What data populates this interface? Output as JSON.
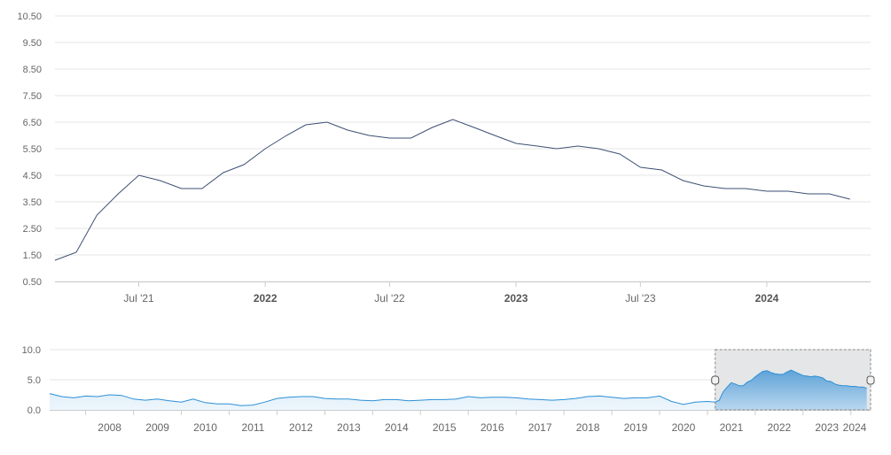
{
  "chart_data": [
    {
      "type": "line",
      "title": "",
      "xlabel": "",
      "ylabel": "",
      "grid": true,
      "legend": "none",
      "ylim": [
        0.5,
        10.5
      ],
      "yticks": [
        "0.50",
        "1.50",
        "2.50",
        "3.50",
        "4.50",
        "5.50",
        "6.50",
        "7.50",
        "8.50",
        "9.50",
        "10.50"
      ],
      "xlim": [
        "2021-03-01",
        "2024-05-31"
      ],
      "xticks": [
        {
          "date": "2021-07-01",
          "label": "Jul '21",
          "bold": false
        },
        {
          "date": "2022-01-01",
          "label": "2022",
          "bold": true
        },
        {
          "date": "2022-07-01",
          "label": "Jul '22",
          "bold": false
        },
        {
          "date": "2023-01-01",
          "label": "2023",
          "bold": true
        },
        {
          "date": "2023-07-01",
          "label": "Jul '23",
          "bold": false
        },
        {
          "date": "2024-01-01",
          "label": "2024",
          "bold": true
        }
      ],
      "colors": {
        "line": "#3d4f73",
        "grid": "#e6e6e6",
        "axis": "#cccccc"
      },
      "series": [
        {
          "x": [
            "2021-03-01",
            "2021-04-01",
            "2021-05-01",
            "2021-06-01",
            "2021-07-01",
            "2021-08-01",
            "2021-09-01",
            "2021-10-01",
            "2021-11-01",
            "2021-12-01",
            "2022-01-01",
            "2022-02-01",
            "2022-03-01",
            "2022-04-01",
            "2022-05-01",
            "2022-06-01",
            "2022-07-01",
            "2022-08-01",
            "2022-09-01",
            "2022-10-01",
            "2022-11-01",
            "2022-12-01",
            "2023-01-01",
            "2023-02-01",
            "2023-03-01",
            "2023-04-01",
            "2023-05-01",
            "2023-06-01",
            "2023-07-01",
            "2023-08-01",
            "2023-09-01",
            "2023-10-01",
            "2023-11-01",
            "2023-12-01",
            "2024-01-01",
            "2024-02-01",
            "2024-03-01",
            "2024-04-01",
            "2024-05-01"
          ],
          "y": [
            1.3,
            1.6,
            3.0,
            3.8,
            4.5,
            4.3,
            4.0,
            4.0,
            4.6,
            4.9,
            5.5,
            6.0,
            6.4,
            6.5,
            6.2,
            6.0,
            5.9,
            5.9,
            6.3,
            6.6,
            6.3,
            6.0,
            5.7,
            5.6,
            5.5,
            5.6,
            5.5,
            5.3,
            4.8,
            4.7,
            4.3,
            4.1,
            4.0,
            4.0,
            3.9,
            3.9,
            3.8,
            3.8,
            3.6
          ]
        }
      ]
    },
    {
      "type": "area",
      "title": "",
      "ylim": [
        0,
        10
      ],
      "yticks": [
        "0.0",
        "5.0",
        "10.0"
      ],
      "xlim": [
        "2007-04-01",
        "2024-05-31"
      ],
      "xticks": [
        "2008",
        "2009",
        "2010",
        "2011",
        "2012",
        "2013",
        "2014",
        "2015",
        "2016",
        "2017",
        "2018",
        "2019",
        "2020",
        "2021",
        "2022",
        "2023",
        "2024"
      ],
      "selected_range": [
        "2021-03-01",
        "2024-05-31"
      ],
      "colors": {
        "line": "#2b8fd6",
        "fill_top": "#cfe6f7",
        "fill_bottom": "#eef6fc",
        "selected_fill": "#6fa7d6",
        "mask": "#e4e6e8"
      },
      "series": [
        {
          "x": [
            "2007-04-01",
            "2007-07-01",
            "2007-10-01",
            "2008-01-01",
            "2008-04-01",
            "2008-07-01",
            "2008-10-01",
            "2009-01-01",
            "2009-04-01",
            "2009-07-01",
            "2009-10-01",
            "2010-01-01",
            "2010-04-01",
            "2010-07-01",
            "2010-10-01",
            "2011-01-01",
            "2011-04-01",
            "2011-07-01",
            "2011-10-01",
            "2012-01-01",
            "2012-04-01",
            "2012-07-01",
            "2012-10-01",
            "2013-01-01",
            "2013-04-01",
            "2013-07-01",
            "2013-10-01",
            "2014-01-01",
            "2014-04-01",
            "2014-07-01",
            "2014-10-01",
            "2015-01-01",
            "2015-04-01",
            "2015-07-01",
            "2015-10-01",
            "2016-01-01",
            "2016-04-01",
            "2016-07-01",
            "2016-10-01",
            "2017-01-01",
            "2017-04-01",
            "2017-07-01",
            "2017-10-01",
            "2018-01-01",
            "2018-04-01",
            "2018-07-01",
            "2018-10-01",
            "2019-01-01",
            "2019-04-01",
            "2019-07-01",
            "2019-10-01",
            "2020-01-01",
            "2020-04-01",
            "2020-07-01",
            "2020-10-01",
            "2021-01-01",
            "2021-03-01",
            "2021-04-01",
            "2021-05-01",
            "2021-06-01",
            "2021-07-01",
            "2021-08-01",
            "2021-09-01",
            "2021-10-01",
            "2021-11-01",
            "2021-12-01",
            "2022-01-01",
            "2022-02-01",
            "2022-03-01",
            "2022-04-01",
            "2022-05-01",
            "2022-06-01",
            "2022-07-01",
            "2022-08-01",
            "2022-09-01",
            "2022-10-01",
            "2022-11-01",
            "2022-12-01",
            "2023-01-01",
            "2023-02-01",
            "2023-03-01",
            "2023-04-01",
            "2023-05-01",
            "2023-06-01",
            "2023-07-01",
            "2023-08-01",
            "2023-09-01",
            "2023-10-01",
            "2023-11-01",
            "2023-12-01",
            "2024-01-01",
            "2024-02-01",
            "2024-03-01",
            "2024-04-01",
            "2024-05-01"
          ],
          "y": [
            2.7,
            2.2,
            2.0,
            2.3,
            2.2,
            2.5,
            2.4,
            1.8,
            1.6,
            1.8,
            1.5,
            1.3,
            1.8,
            1.2,
            1.0,
            1.0,
            0.7,
            0.8,
            1.3,
            1.9,
            2.1,
            2.2,
            2.2,
            1.9,
            1.8,
            1.8,
            1.6,
            1.5,
            1.7,
            1.7,
            1.5,
            1.6,
            1.7,
            1.7,
            1.8,
            2.2,
            2.0,
            2.1,
            2.1,
            2.0,
            1.8,
            1.7,
            1.6,
            1.7,
            1.9,
            2.2,
            2.3,
            2.1,
            1.9,
            2.0,
            2.0,
            2.3,
            1.4,
            0.9,
            1.3,
            1.4,
            1.3,
            1.6,
            3.0,
            3.8,
            4.5,
            4.3,
            4.0,
            4.0,
            4.6,
            4.9,
            5.5,
            6.0,
            6.4,
            6.5,
            6.2,
            6.0,
            5.9,
            5.9,
            6.3,
            6.6,
            6.3,
            6.0,
            5.7,
            5.6,
            5.5,
            5.6,
            5.5,
            5.3,
            4.8,
            4.7,
            4.3,
            4.1,
            4.0,
            4.0,
            3.9,
            3.9,
            3.8,
            3.8,
            3.6
          ]
        }
      ]
    }
  ]
}
